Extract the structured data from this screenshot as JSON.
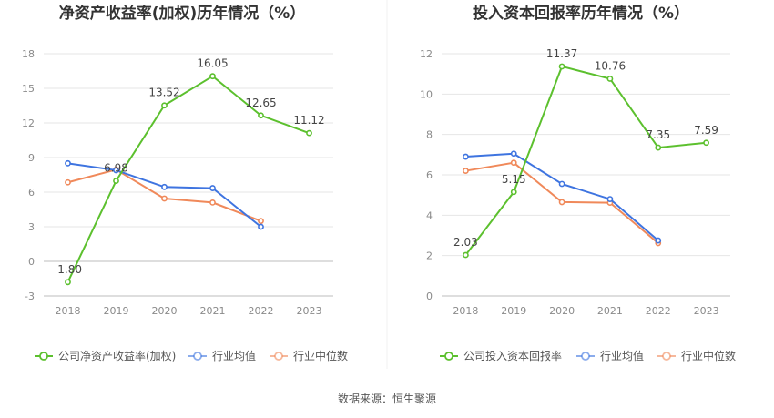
{
  "chart_data": [
    {
      "type": "line",
      "title": "净资产收益率(加权)历年情况（%）",
      "categories": [
        "2018",
        "2019",
        "2020",
        "2021",
        "2022",
        "2023"
      ],
      "yticks": [
        "-3",
        "0",
        "3",
        "6",
        "9",
        "12",
        "15",
        "18"
      ],
      "ylim": [
        -3,
        18
      ],
      "grid": true,
      "legend_position": "bottom",
      "series": [
        {
          "name": "公司净资产收益率(加权)",
          "color": "#5cc02e",
          "values": [
            -1.8,
            6.98,
            13.52,
            16.05,
            12.65,
            11.12
          ],
          "labels": [
            "-1.80",
            "6.98",
            "13.52",
            "16.05",
            "12.65",
            "11.12"
          ]
        },
        {
          "name": "行业均值",
          "color": "#3e74e0",
          "values": [
            8.5,
            7.9,
            6.45,
            6.35,
            3.0,
            null
          ]
        },
        {
          "name": "行业中位数",
          "color": "#f0895a",
          "values": [
            6.85,
            7.95,
            5.45,
            5.1,
            3.5,
            null
          ]
        }
      ]
    },
    {
      "type": "line",
      "title": "投入资本回报率历年情况（%）",
      "categories": [
        "2018",
        "2019",
        "2020",
        "2021",
        "2022",
        "2023"
      ],
      "yticks": [
        "0",
        "2",
        "4",
        "6",
        "8",
        "10",
        "12"
      ],
      "ylim": [
        0,
        12
      ],
      "grid": true,
      "legend_position": "bottom",
      "series": [
        {
          "name": "公司投入资本回报率",
          "color": "#5cc02e",
          "values": [
            2.03,
            5.15,
            11.37,
            10.76,
            7.35,
            7.59
          ],
          "labels": [
            "2.03",
            "5.15",
            "11.37",
            "10.76",
            "7.35",
            "7.59"
          ]
        },
        {
          "name": "行业均值",
          "color": "#3e74e0",
          "values": [
            6.9,
            7.05,
            5.55,
            4.8,
            2.75,
            null
          ]
        },
        {
          "name": "行业中位数",
          "color": "#f0895a",
          "values": [
            6.2,
            6.6,
            4.65,
            4.62,
            2.62,
            null
          ]
        }
      ]
    }
  ],
  "footer": {
    "source": "数据来源：恒生聚源"
  }
}
